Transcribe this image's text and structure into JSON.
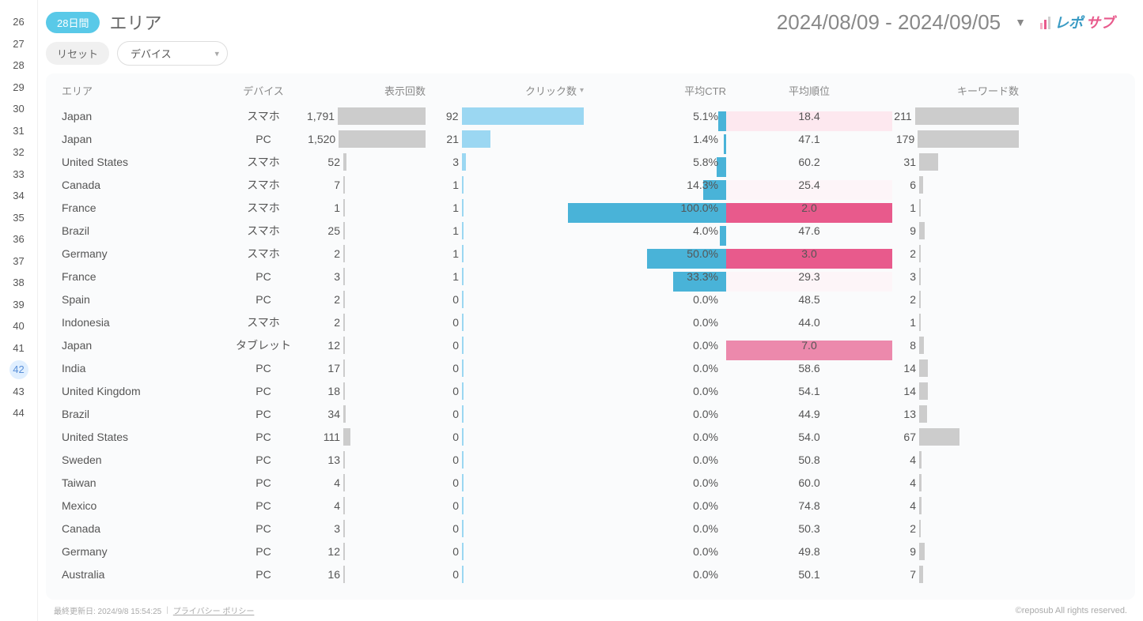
{
  "ruler": {
    "start": 26,
    "end": 44,
    "active": 42
  },
  "header": {
    "badge": "28日間",
    "title": "エリア",
    "date_range": "2024/08/09 - 2024/09/05",
    "logo_text": "レポサブ"
  },
  "filters": {
    "reset_label": "リセット",
    "dropdown_label": "デバイス"
  },
  "columns": {
    "area": "エリア",
    "device": "デバイス",
    "impressions": "表示回数",
    "clicks": "クリック数",
    "ctr": "平均CTR",
    "rank": "平均順位",
    "keywords": "キーワード数"
  },
  "bars": {
    "impressions_max": 1791,
    "impressions_bar_width": 150,
    "impressions_color": "#cccccc",
    "clicks_max": 100,
    "clicks_bar_width": 170,
    "clicks_color": "#9bd7f2",
    "ctr_max": 100,
    "ctr_bar_width": 200,
    "ctr_color": "#49b3d8",
    "keywords_max": 211,
    "keywords_bar_width": 160,
    "keywords_color": "#cccccc"
  },
  "rank_style": {
    "best": 2.0,
    "worst": 75,
    "strong_color": "#e85a8c",
    "light_color": "#fde8ef",
    "lightest_color": "#fdf5f8"
  },
  "rows": [
    {
      "area": "Japan",
      "device": "スマホ",
      "impressions": 1791,
      "clicks": 92,
      "ctr": 5.1,
      "rank": 18.4,
      "keywords": 211
    },
    {
      "area": "Japan",
      "device": "PC",
      "impressions": 1520,
      "clicks": 21,
      "ctr": 1.4,
      "rank": 47.1,
      "keywords": 179
    },
    {
      "area": "United States",
      "device": "スマホ",
      "impressions": 52,
      "clicks": 3,
      "ctr": 5.8,
      "rank": 60.2,
      "keywords": 31
    },
    {
      "area": "Canada",
      "device": "スマホ",
      "impressions": 7,
      "clicks": 1,
      "ctr": 14.3,
      "rank": 25.4,
      "keywords": 6
    },
    {
      "area": "France",
      "device": "スマホ",
      "impressions": 1,
      "clicks": 1,
      "ctr": 100.0,
      "rank": 2.0,
      "keywords": 1
    },
    {
      "area": "Brazil",
      "device": "スマホ",
      "impressions": 25,
      "clicks": 1,
      "ctr": 4.0,
      "rank": 47.6,
      "keywords": 9
    },
    {
      "area": "Germany",
      "device": "スマホ",
      "impressions": 2,
      "clicks": 1,
      "ctr": 50.0,
      "rank": 3.0,
      "keywords": 2
    },
    {
      "area": "France",
      "device": "PC",
      "impressions": 3,
      "clicks": 1,
      "ctr": 33.3,
      "rank": 29.3,
      "keywords": 3
    },
    {
      "area": "Spain",
      "device": "PC",
      "impressions": 2,
      "clicks": 0,
      "ctr": 0.0,
      "rank": 48.5,
      "keywords": 2
    },
    {
      "area": "Indonesia",
      "device": "スマホ",
      "impressions": 2,
      "clicks": 0,
      "ctr": 0.0,
      "rank": 44.0,
      "keywords": 1
    },
    {
      "area": "Japan",
      "device": "タブレット",
      "impressions": 12,
      "clicks": 0,
      "ctr": 0.0,
      "rank": 7.0,
      "keywords": 8
    },
    {
      "area": "India",
      "device": "PC",
      "impressions": 17,
      "clicks": 0,
      "ctr": 0.0,
      "rank": 58.6,
      "keywords": 14
    },
    {
      "area": "United Kingdom",
      "device": "PC",
      "impressions": 18,
      "clicks": 0,
      "ctr": 0.0,
      "rank": 54.1,
      "keywords": 14
    },
    {
      "area": "Brazil",
      "device": "PC",
      "impressions": 34,
      "clicks": 0,
      "ctr": 0.0,
      "rank": 44.9,
      "keywords": 13
    },
    {
      "area": "United States",
      "device": "PC",
      "impressions": 111,
      "clicks": 0,
      "ctr": 0.0,
      "rank": 54.0,
      "keywords": 67
    },
    {
      "area": "Sweden",
      "device": "PC",
      "impressions": 13,
      "clicks": 0,
      "ctr": 0.0,
      "rank": 50.8,
      "keywords": 4
    },
    {
      "area": "Taiwan",
      "device": "PC",
      "impressions": 4,
      "clicks": 0,
      "ctr": 0.0,
      "rank": 60.0,
      "keywords": 4
    },
    {
      "area": "Mexico",
      "device": "PC",
      "impressions": 4,
      "clicks": 0,
      "ctr": 0.0,
      "rank": 74.8,
      "keywords": 4
    },
    {
      "area": "Canada",
      "device": "PC",
      "impressions": 3,
      "clicks": 0,
      "ctr": 0.0,
      "rank": 50.3,
      "keywords": 2
    },
    {
      "area": "Germany",
      "device": "PC",
      "impressions": 12,
      "clicks": 0,
      "ctr": 0.0,
      "rank": 49.8,
      "keywords": 9
    },
    {
      "area": "Australia",
      "device": "PC",
      "impressions": 16,
      "clicks": 0,
      "ctr": 0.0,
      "rank": 50.1,
      "keywords": 7
    }
  ],
  "footer": {
    "updated_label": "最終更新日: 2024/9/8 15:54:25",
    "privacy_label": "プライバシー ポリシー",
    "copyright": "©reposub All rights reserved."
  }
}
